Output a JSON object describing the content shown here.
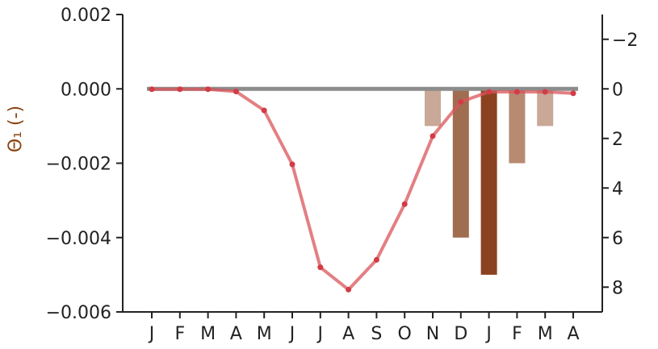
{
  "chart_data": {
    "type": "bar",
    "title": "",
    "categories": [
      "J",
      "F",
      "M",
      "A",
      "M",
      "J",
      "J",
      "A",
      "S",
      "O",
      "N",
      "D",
      "J",
      "F",
      "M",
      "A"
    ],
    "left_axis": {
      "label": "Θ₁ (-)",
      "ylim": [
        -0.006,
        0.002
      ],
      "ticks": [
        0.002,
        0.0,
        -0.002,
        -0.004,
        -0.006
      ],
      "tick_labels": [
        "0.002",
        "0.000",
        "−0.002",
        "−0.004",
        "−0.006"
      ],
      "color": "#8b4513"
    },
    "right_axis": {
      "label": "",
      "ylim": [
        -3,
        9
      ],
      "inverted": true,
      "ticks": [
        -2,
        0,
        2,
        4,
        6,
        8
      ],
      "tick_labels": [
        "−2",
        "0",
        "2",
        "4",
        "6",
        "8"
      ],
      "color": "#8b4513"
    },
    "series": [
      {
        "type": "line",
        "axis": "left",
        "color": "#d9545a",
        "values": [
          -1e-05,
          -1e-05,
          -1e-05,
          -7e-05,
          -0.00058,
          -0.00203,
          -0.0048,
          -0.0054,
          -0.0046,
          -0.0031,
          -0.00127,
          -0.00035,
          -8e-05,
          -8e-05,
          -8e-05,
          -0.00012
        ]
      },
      {
        "type": "bar",
        "axis": "right",
        "values": [
          0,
          0,
          0,
          0,
          0,
          0,
          0,
          0,
          0,
          0,
          1.5,
          6,
          7.5,
          3,
          1.5,
          0
        ],
        "colors": [
          "#c9a898",
          "#c9a898",
          "#c9a898",
          "#c9a898",
          "#c9a898",
          "#c9a898",
          "#c9a898",
          "#c9a898",
          "#c9a898",
          "#c9a898",
          "#c9a898",
          "#a06d50",
          "#8b4220",
          "#b88a72",
          "#c9a898",
          "#c9a898"
        ]
      }
    ],
    "reference_line": {
      "value": 0,
      "color": "#8c8c8c"
    },
    "grid": false,
    "legend": "none"
  }
}
